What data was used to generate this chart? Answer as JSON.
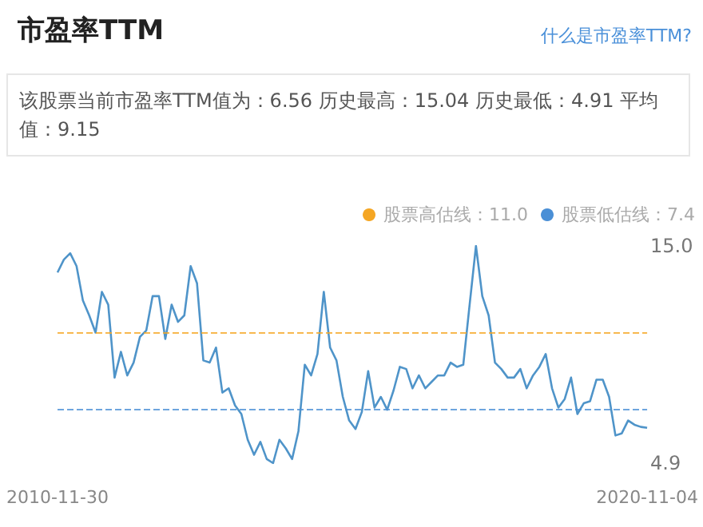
{
  "chart_data": {
    "type": "line",
    "title": "市盈率TTM",
    "subtitle": "该股票当前市盈率TTM值为：6.56 历史最高：15.04 历史最低：4.91 平均值：9.15",
    "annotations": [
      "什么是市盈率TTM?"
    ],
    "categories": [
      "2010-11-30",
      null,
      null,
      null,
      null,
      null,
      null,
      null,
      null,
      null,
      null,
      null,
      null,
      null,
      null,
      null,
      null,
      null,
      null,
      null,
      null,
      null,
      null,
      null,
      null,
      null,
      null,
      null,
      null,
      null,
      null,
      null,
      null,
      null,
      null,
      null,
      null,
      null,
      null,
      null,
      null,
      null,
      null,
      null,
      null,
      null,
      null,
      null,
      null,
      null,
      null,
      null,
      null,
      null,
      null,
      null,
      null,
      null,
      null,
      null,
      null,
      null,
      null,
      null,
      null,
      null,
      null,
      null,
      null,
      null,
      null,
      null,
      null,
      null,
      null,
      null,
      null,
      null,
      null,
      null,
      null,
      null,
      null,
      null,
      null,
      null,
      null,
      null,
      null,
      null,
      null,
      null,
      null,
      "2020-11-04"
    ],
    "series": [
      {
        "color": "#4f94c9",
        "values": [
          13.8,
          14.4,
          14.7,
          14.1,
          12.5,
          11.8,
          11.0,
          12.9,
          12.3,
          8.9,
          10.1,
          9.0,
          9.6,
          10.8,
          11.1,
          12.7,
          12.7,
          10.7,
          12.3,
          11.5,
          11.8,
          14.1,
          13.3,
          9.7,
          9.6,
          10.3,
          8.2,
          8.4,
          7.6,
          7.2,
          6.0,
          5.3,
          5.9,
          5.1,
          4.91,
          6.0,
          5.6,
          5.1,
          6.4,
          9.5,
          9.0,
          10.0,
          12.9,
          10.3,
          9.7,
          8.0,
          6.9,
          6.5,
          7.3,
          9.2,
          7.5,
          8.0,
          7.4,
          8.3,
          9.4,
          9.3,
          8.4,
          9.0,
          8.4,
          8.7,
          9.0,
          9.0,
          9.6,
          9.4,
          9.5,
          12.3,
          15.04,
          12.7,
          11.8,
          9.6,
          9.3,
          8.9,
          8.9,
          9.3,
          8.4,
          9.0,
          9.4,
          10.0,
          8.4,
          7.5,
          7.9,
          8.9,
          7.2,
          7.7,
          7.8,
          8.8,
          8.8,
          8.0,
          6.2,
          6.3,
          6.9,
          6.7,
          6.6,
          6.56
        ]
      }
    ],
    "ylim": [
      4.91,
      15.04
    ],
    "yticks": [
      {
        "value": 4.91,
        "label": "4.9"
      },
      {
        "value": 15.04,
        "label": "15.0"
      }
    ],
    "ref_lines": [
      {
        "axis": "y",
        "value": 11.0,
        "label": "股票高估线：11.0",
        "color": "#f5a623",
        "line_style": "dashed"
      },
      {
        "axis": "y",
        "value": 7.4,
        "label": "股票低估线：7.4",
        "color": "#4a8fd6",
        "line_style": "dashed"
      }
    ],
    "legend": "top right",
    "grid": false
  }
}
